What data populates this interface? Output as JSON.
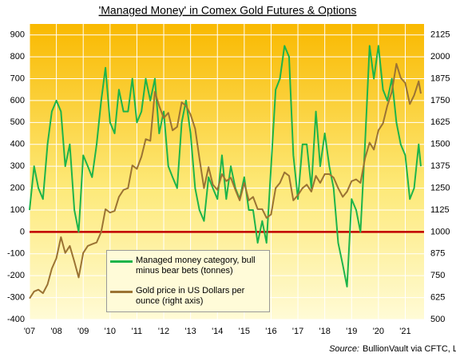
{
  "chart_data": {
    "type": "line",
    "title": "'Managed Money' in Comex Gold Futures & Options",
    "source_label": "Source:",
    "source": "BullionVault via CFTC, LBMA",
    "x": [
      2007,
      2007.17,
      2007.33,
      2007.5,
      2007.67,
      2007.83,
      2008,
      2008.17,
      2008.33,
      2008.5,
      2008.67,
      2008.83,
      2009,
      2009.17,
      2009.33,
      2009.5,
      2009.67,
      2009.83,
      2010,
      2010.17,
      2010.33,
      2010.5,
      2010.67,
      2010.83,
      2011,
      2011.17,
      2011.33,
      2011.5,
      2011.67,
      2011.83,
      2012,
      2012.17,
      2012.33,
      2012.5,
      2012.67,
      2012.83,
      2013,
      2013.17,
      2013.33,
      2013.5,
      2013.67,
      2013.83,
      2014,
      2014.17,
      2014.33,
      2014.5,
      2014.67,
      2014.83,
      2015,
      2015.17,
      2015.33,
      2015.5,
      2015.67,
      2015.83,
      2016,
      2016.17,
      2016.33,
      2016.5,
      2016.67,
      2016.83,
      2017,
      2017.17,
      2017.33,
      2017.5,
      2017.67,
      2017.83,
      2018,
      2018.17,
      2018.33,
      2018.5,
      2018.67,
      2018.83,
      2019,
      2019.17,
      2019.33,
      2019.5,
      2019.67,
      2019.83,
      2020,
      2020.17,
      2020.33,
      2020.5,
      2020.67,
      2020.83,
      2021,
      2021.17,
      2021.33,
      2021.5,
      2021.58
    ],
    "series": [
      {
        "name": "Managed money category, bull minus bear bets (tonnes)",
        "color": "#1db44a",
        "axis": "y",
        "values": [
          100,
          300,
          200,
          150,
          400,
          550,
          600,
          550,
          300,
          400,
          100,
          0,
          350,
          300,
          250,
          400,
          600,
          750,
          500,
          450,
          650,
          550,
          550,
          700,
          500,
          550,
          700,
          600,
          700,
          450,
          550,
          300,
          250,
          200,
          500,
          600,
          450,
          200,
          100,
          50,
          250,
          200,
          150,
          350,
          150,
          300,
          200,
          150,
          250,
          100,
          100,
          -50,
          50,
          -50,
          300,
          650,
          700,
          850,
          800,
          350,
          150,
          400,
          400,
          200,
          550,
          300,
          450,
          300,
          200,
          -50,
          -150,
          -250,
          150,
          100,
          0,
          400,
          850,
          700,
          850,
          650,
          600,
          700,
          500,
          400,
          350,
          150,
          200,
          400,
          300
        ]
      },
      {
        "name": "Gold price in US Dollars per ounce (right axis)",
        "color": "#9b7333",
        "axis": "y2",
        "values": [
          620,
          660,
          670,
          650,
          700,
          790,
          850,
          970,
          880,
          920,
          830,
          740,
          880,
          920,
          930,
          940,
          1000,
          1130,
          1110,
          1120,
          1200,
          1240,
          1250,
          1380,
          1360,
          1430,
          1530,
          1520,
          1800,
          1720,
          1650,
          1680,
          1580,
          1600,
          1740,
          1720,
          1670,
          1590,
          1420,
          1250,
          1370,
          1270,
          1240,
          1330,
          1290,
          1310,
          1240,
          1180,
          1280,
          1180,
          1200,
          1130,
          1130,
          1080,
          1100,
          1250,
          1280,
          1340,
          1320,
          1180,
          1210,
          1250,
          1270,
          1230,
          1320,
          1280,
          1330,
          1330,
          1310,
          1250,
          1200,
          1230,
          1290,
          1300,
          1280,
          1420,
          1510,
          1470,
          1580,
          1620,
          1720,
          1800,
          1960,
          1880,
          1850,
          1730,
          1780,
          1860,
          1790
        ]
      }
    ],
    "xlim": [
      2007,
      2021.7
    ],
    "xticks": [
      {
        "value": 2007,
        "label": "'07"
      },
      {
        "value": 2008,
        "label": "'08"
      },
      {
        "value": 2009,
        "label": "'09"
      },
      {
        "value": 2010,
        "label": "'10"
      },
      {
        "value": 2011,
        "label": "'11"
      },
      {
        "value": 2012,
        "label": "'12"
      },
      {
        "value": 2013,
        "label": "'13"
      },
      {
        "value": 2014,
        "label": "'14"
      },
      {
        "value": 2015,
        "label": "'15"
      },
      {
        "value": 2016,
        "label": "'16"
      },
      {
        "value": 2017,
        "label": "'17"
      },
      {
        "value": 2018,
        "label": "'18"
      },
      {
        "value": 2019,
        "label": "'19"
      },
      {
        "value": 2020,
        "label": "'20"
      },
      {
        "value": 2021,
        "label": "'21"
      }
    ],
    "ylim": [
      -400,
      950
    ],
    "yticks": [
      -400,
      -300,
      -200,
      -100,
      0,
      100,
      200,
      300,
      400,
      500,
      600,
      700,
      800,
      900
    ],
    "y2lim": [
      500,
      2187.5
    ],
    "y2ticks": [
      500,
      625,
      750,
      875,
      1000,
      1125,
      1250,
      1375,
      1500,
      1625,
      1750,
      1875,
      2000,
      2125
    ],
    "grid": true
  }
}
